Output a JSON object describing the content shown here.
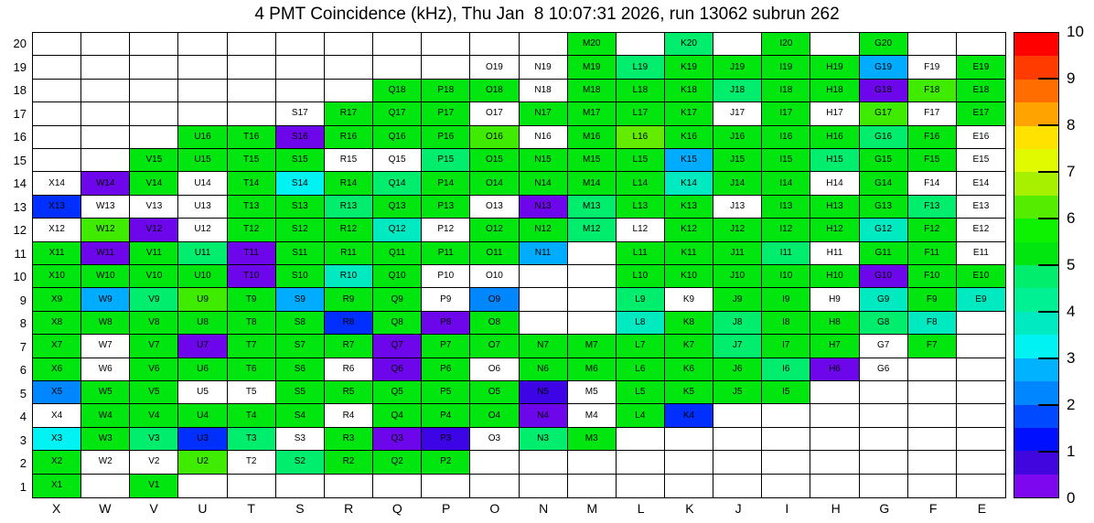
{
  "title": "4 PMT Coincidence (kHz), Thu Jan  8 10:07:31 2026, run 13062 subrun 262",
  "chart_data": {
    "type": "heatmap",
    "title": "4 PMT Coincidence (kHz), Thu Jan  8 10:07:31 2026, run 13062 subrun 262",
    "unit": "kHz",
    "x_labels": [
      "X",
      "W",
      "V",
      "U",
      "T",
      "S",
      "R",
      "Q",
      "P",
      "O",
      "N",
      "M",
      "L",
      "K",
      "J",
      "I",
      "H",
      "G",
      "F",
      "E"
    ],
    "y_labels": [
      "20",
      "19",
      "18",
      "17",
      "16",
      "15",
      "14",
      "13",
      "12",
      "11",
      "10",
      "9",
      "8",
      "7",
      "6",
      "5",
      "4",
      "3",
      "2",
      "1"
    ],
    "palette": {
      "g": "#00e60e",
      "yg": "#3fec00",
      "yg2": "#63ec00",
      "sg": "#00ed6d",
      "tq": "#00eac2",
      "cy": "#00f2f2",
      "lb": "#00acff",
      "mb": "#0087ff",
      "bl": "#002fff",
      "vb": "#3d04e6",
      "vi": "#6d06ea",
      "w": "#ffffff"
    },
    "palette_approx_value_kHz": {
      "g": 5.2,
      "yg": 6.2,
      "yg2": 6.3,
      "sg": 4.7,
      "tq": 3.7,
      "cy": 3.2,
      "lb": 2.7,
      "mb": 2.2,
      "bl": 1.4,
      "vb": 0.8,
      "vi": 0.3,
      "w": null
    },
    "colorbar": {
      "min": 0,
      "max": 10,
      "ticks": [
        "10",
        "9",
        "8",
        "7",
        "6",
        "5",
        "4",
        "3",
        "2",
        "1",
        "0"
      ],
      "bands": [
        "#ff0000",
        "#ff3b00",
        "#ff6c00",
        "#ffa300",
        "#ffe200",
        "#e2fa00",
        "#a6f000",
        "#55ec00",
        "#0cf200",
        "#00e60e",
        "#00ed6d",
        "#00f094",
        "#00eac2",
        "#00f2f2",
        "#00b2ff",
        "#0087ff",
        "#0049ff",
        "#0010ff",
        "#4105dd",
        "#7d08f0"
      ]
    },
    "rows": [
      [
        null,
        null,
        null,
        null,
        null,
        null,
        null,
        null,
        null,
        null,
        null,
        [
          "M20",
          "g"
        ],
        null,
        [
          "K20",
          "sg"
        ],
        null,
        [
          "I20",
          "g"
        ],
        null,
        [
          "G20",
          "g"
        ],
        null,
        null
      ],
      [
        null,
        null,
        null,
        null,
        null,
        null,
        null,
        null,
        null,
        [
          "O19",
          "w"
        ],
        [
          "N19",
          "w"
        ],
        [
          "M19",
          "g"
        ],
        [
          "L19",
          "sg"
        ],
        [
          "K19",
          "g"
        ],
        [
          "J19",
          "g"
        ],
        [
          "I19",
          "g"
        ],
        [
          "H19",
          "g"
        ],
        [
          "G19",
          "lb"
        ],
        [
          "F19",
          "w"
        ],
        [
          "E19",
          "g"
        ]
      ],
      [
        null,
        null,
        null,
        null,
        null,
        null,
        null,
        [
          "Q18",
          "g"
        ],
        [
          "P18",
          "g"
        ],
        [
          "O18",
          "g"
        ],
        [
          "N18",
          "w"
        ],
        [
          "M18",
          "g"
        ],
        [
          "L18",
          "g"
        ],
        [
          "K18",
          "g"
        ],
        [
          "J18",
          "sg"
        ],
        [
          "I18",
          "g"
        ],
        [
          "H18",
          "g"
        ],
        [
          "G18",
          "vi"
        ],
        [
          "F18",
          "yg"
        ],
        [
          "E18",
          "g"
        ]
      ],
      [
        null,
        null,
        null,
        null,
        null,
        [
          "S17",
          "w"
        ],
        [
          "R17",
          "g"
        ],
        [
          "Q17",
          "g"
        ],
        [
          "P17",
          "g"
        ],
        [
          "O17",
          "w"
        ],
        [
          "N17",
          "g"
        ],
        [
          "M17",
          "g"
        ],
        [
          "L17",
          "g"
        ],
        [
          "K17",
          "g"
        ],
        [
          "J17",
          "w"
        ],
        [
          "I17",
          "g"
        ],
        [
          "H17",
          "w"
        ],
        [
          "G17",
          "yg"
        ],
        [
          "F17",
          "w"
        ],
        [
          "E17",
          "g"
        ]
      ],
      [
        null,
        null,
        null,
        [
          "U16",
          "g"
        ],
        [
          "T16",
          "g"
        ],
        [
          "S16",
          "vi"
        ],
        [
          "R16",
          "g"
        ],
        [
          "Q16",
          "g"
        ],
        [
          "P16",
          "g"
        ],
        [
          "O16",
          "yg"
        ],
        [
          "N16",
          "w"
        ],
        [
          "M16",
          "g"
        ],
        [
          "L16",
          "yg2"
        ],
        [
          "K16",
          "g"
        ],
        [
          "J16",
          "g"
        ],
        [
          "I16",
          "g"
        ],
        [
          "H16",
          "g"
        ],
        [
          "G16",
          "sg"
        ],
        [
          "F16",
          "g"
        ],
        [
          "E16",
          "w"
        ]
      ],
      [
        null,
        null,
        [
          "V15",
          "g"
        ],
        [
          "U15",
          "g"
        ],
        [
          "T15",
          "g"
        ],
        [
          "S15",
          "g"
        ],
        [
          "R15",
          "w"
        ],
        [
          "Q15",
          "w"
        ],
        [
          "P15",
          "sg"
        ],
        [
          "O15",
          "g"
        ],
        [
          "N15",
          "g"
        ],
        [
          "M15",
          "g"
        ],
        [
          "L15",
          "g"
        ],
        [
          "K15",
          "lb"
        ],
        [
          "J15",
          "g"
        ],
        [
          "I15",
          "g"
        ],
        [
          "H15",
          "sg"
        ],
        [
          "G15",
          "g"
        ],
        [
          "F15",
          "g"
        ],
        [
          "E15",
          "w"
        ]
      ],
      [
        [
          "X14",
          "w"
        ],
        [
          "W14",
          "vi"
        ],
        [
          "V14",
          "g"
        ],
        [
          "U14",
          "w"
        ],
        [
          "T14",
          "g"
        ],
        [
          "S14",
          "cy"
        ],
        [
          "R14",
          "g"
        ],
        [
          "Q14",
          "sg"
        ],
        [
          "P14",
          "g"
        ],
        [
          "O14",
          "g"
        ],
        [
          "N14",
          "g"
        ],
        [
          "M14",
          "g"
        ],
        [
          "L14",
          "g"
        ],
        [
          "K14",
          "tq"
        ],
        [
          "J14",
          "g"
        ],
        [
          "I14",
          "g"
        ],
        [
          "H14",
          "w"
        ],
        [
          "G14",
          "g"
        ],
        [
          "F14",
          "w"
        ],
        [
          "E14",
          "w"
        ]
      ],
      [
        [
          "X13",
          "bl"
        ],
        [
          "W13",
          "w"
        ],
        [
          "V13",
          "w"
        ],
        [
          "U13",
          "w"
        ],
        [
          "T13",
          "g"
        ],
        [
          "S13",
          "g"
        ],
        [
          "R13",
          "sg"
        ],
        [
          "Q13",
          "g"
        ],
        [
          "P13",
          "g"
        ],
        [
          "O13",
          "w"
        ],
        [
          "N13",
          "vi"
        ],
        [
          "M13",
          "sg"
        ],
        [
          "L13",
          "g"
        ],
        [
          "K13",
          "g"
        ],
        [
          "J13",
          "w"
        ],
        [
          "I13",
          "g"
        ],
        [
          "H13",
          "g"
        ],
        [
          "G13",
          "g"
        ],
        [
          "F13",
          "sg"
        ],
        [
          "E13",
          "w"
        ]
      ],
      [
        [
          "X12",
          "w"
        ],
        [
          "W12",
          "yg"
        ],
        [
          "V12",
          "vi"
        ],
        [
          "U12",
          "w"
        ],
        [
          "T12",
          "g"
        ],
        [
          "S12",
          "g"
        ],
        [
          "R12",
          "g"
        ],
        [
          "Q12",
          "tq"
        ],
        [
          "P12",
          "w"
        ],
        [
          "O12",
          "g"
        ],
        [
          "N12",
          "g"
        ],
        [
          "M12",
          "sg"
        ],
        [
          "L12",
          "w"
        ],
        [
          "K12",
          "g"
        ],
        [
          "J12",
          "g"
        ],
        [
          "I12",
          "g"
        ],
        [
          "H12",
          "g"
        ],
        [
          "G12",
          "tq"
        ],
        [
          "F12",
          "g"
        ],
        [
          "E12",
          "w"
        ]
      ],
      [
        [
          "X11",
          "g"
        ],
        [
          "W11",
          "vi"
        ],
        [
          "V11",
          "g"
        ],
        [
          "U11",
          "sg"
        ],
        [
          "T11",
          "vi"
        ],
        [
          "S11",
          "g"
        ],
        [
          "R11",
          "g"
        ],
        [
          "Q11",
          "g"
        ],
        [
          "P11",
          "g"
        ],
        [
          "O11",
          "g"
        ],
        [
          "N11",
          "lb"
        ],
        null,
        [
          "L11",
          "g"
        ],
        [
          "K11",
          "g"
        ],
        [
          "J11",
          "g"
        ],
        [
          "I11",
          "sg"
        ],
        [
          "H11",
          "w"
        ],
        [
          "G11",
          "g"
        ],
        [
          "F11",
          "g"
        ],
        [
          "E11",
          "w"
        ]
      ],
      [
        [
          "X10",
          "g"
        ],
        [
          "W10",
          "g"
        ],
        [
          "V10",
          "g"
        ],
        [
          "U10",
          "g"
        ],
        [
          "T10",
          "vi"
        ],
        [
          "S10",
          "g"
        ],
        [
          "R10",
          "tq"
        ],
        [
          "Q10",
          "g"
        ],
        [
          "P10",
          "w"
        ],
        [
          "O10",
          "w"
        ],
        null,
        null,
        [
          "L10",
          "g"
        ],
        [
          "K10",
          "g"
        ],
        [
          "J10",
          "g"
        ],
        [
          "I10",
          "g"
        ],
        [
          "H10",
          "g"
        ],
        [
          "G10",
          "vi"
        ],
        [
          "F10",
          "g"
        ],
        [
          "E10",
          "g"
        ]
      ],
      [
        [
          "X9",
          "g"
        ],
        [
          "W9",
          "lb"
        ],
        [
          "V9",
          "sg"
        ],
        [
          "U9",
          "yg"
        ],
        [
          "T9",
          "g"
        ],
        [
          "S9",
          "lb"
        ],
        [
          "R9",
          "g"
        ],
        [
          "Q9",
          "g"
        ],
        [
          "P9",
          "w"
        ],
        [
          "O9",
          "mb"
        ],
        null,
        null,
        [
          "L9",
          "sg"
        ],
        [
          "K9",
          "w"
        ],
        [
          "J9",
          "g"
        ],
        [
          "I9",
          "g"
        ],
        [
          "H9",
          "w"
        ],
        [
          "G9",
          "tq"
        ],
        [
          "F9",
          "g"
        ],
        [
          "E9",
          "tq"
        ]
      ],
      [
        [
          "X8",
          "g"
        ],
        [
          "W8",
          "g"
        ],
        [
          "V8",
          "g"
        ],
        [
          "U8",
          "g"
        ],
        [
          "T8",
          "g"
        ],
        [
          "S8",
          "g"
        ],
        [
          "R8",
          "bl"
        ],
        [
          "Q8",
          "g"
        ],
        [
          "P8",
          "vi"
        ],
        [
          "O8",
          "g"
        ],
        null,
        null,
        [
          "L8",
          "tq"
        ],
        [
          "K8",
          "g"
        ],
        [
          "J8",
          "sg"
        ],
        [
          "I8",
          "g"
        ],
        [
          "H8",
          "g"
        ],
        [
          "G8",
          "sg"
        ],
        [
          "F8",
          "tq"
        ],
        null
      ],
      [
        [
          "X7",
          "g"
        ],
        [
          "W7",
          "w"
        ],
        [
          "V7",
          "g"
        ],
        [
          "U7",
          "vi"
        ],
        [
          "T7",
          "g"
        ],
        [
          "S7",
          "g"
        ],
        [
          "R7",
          "g"
        ],
        [
          "Q7",
          "vi"
        ],
        [
          "P7",
          "g"
        ],
        [
          "O7",
          "g"
        ],
        [
          "N7",
          "g"
        ],
        [
          "M7",
          "g"
        ],
        [
          "L7",
          "g"
        ],
        [
          "K7",
          "g"
        ],
        [
          "J7",
          "sg"
        ],
        [
          "I7",
          "g"
        ],
        [
          "H7",
          "g"
        ],
        [
          "G7",
          "w"
        ],
        [
          "F7",
          "g"
        ],
        null
      ],
      [
        [
          "X6",
          "g"
        ],
        [
          "W6",
          "w"
        ],
        [
          "V6",
          "g"
        ],
        [
          "U6",
          "g"
        ],
        [
          "T6",
          "g"
        ],
        [
          "S6",
          "g"
        ],
        [
          "R6",
          "w"
        ],
        [
          "Q6",
          "vi"
        ],
        [
          "P6",
          "g"
        ],
        [
          "O6",
          "w"
        ],
        [
          "N6",
          "g"
        ],
        [
          "M6",
          "g"
        ],
        [
          "L6",
          "g"
        ],
        [
          "K6",
          "g"
        ],
        [
          "J6",
          "g"
        ],
        [
          "I6",
          "sg"
        ],
        [
          "H6",
          "vi"
        ],
        [
          "G6",
          "w"
        ],
        null,
        null
      ],
      [
        [
          "X5",
          "mb"
        ],
        [
          "W5",
          "g"
        ],
        [
          "V5",
          "g"
        ],
        [
          "U5",
          "w"
        ],
        [
          "T5",
          "w"
        ],
        [
          "S5",
          "g"
        ],
        [
          "R5",
          "g"
        ],
        [
          "Q5",
          "g"
        ],
        [
          "P5",
          "g"
        ],
        [
          "O5",
          "g"
        ],
        [
          "N5",
          "vb"
        ],
        [
          "M5",
          "w"
        ],
        [
          "L5",
          "g"
        ],
        [
          "K5",
          "g"
        ],
        [
          "J5",
          "g"
        ],
        [
          "I5",
          "g"
        ],
        null,
        null,
        null,
        null
      ],
      [
        [
          "X4",
          "w"
        ],
        [
          "W4",
          "g"
        ],
        [
          "V4",
          "g"
        ],
        [
          "U4",
          "g"
        ],
        [
          "T4",
          "g"
        ],
        [
          "S4",
          "g"
        ],
        [
          "R4",
          "w"
        ],
        [
          "Q4",
          "g"
        ],
        [
          "P4",
          "g"
        ],
        [
          "O4",
          "g"
        ],
        [
          "N4",
          "vi"
        ],
        [
          "M4",
          "w"
        ],
        [
          "L4",
          "g"
        ],
        [
          "K4",
          "bl"
        ],
        null,
        null,
        null,
        null,
        null,
        null
      ],
      [
        [
          "X3",
          "cy"
        ],
        [
          "W3",
          "g"
        ],
        [
          "V3",
          "sg"
        ],
        [
          "U3",
          "bl"
        ],
        [
          "T3",
          "sg"
        ],
        [
          "S3",
          "w"
        ],
        [
          "R3",
          "g"
        ],
        [
          "Q3",
          "vi"
        ],
        [
          "P3",
          "vb"
        ],
        [
          "O3",
          "w"
        ],
        [
          "N3",
          "sg"
        ],
        [
          "M3",
          "g"
        ],
        null,
        null,
        null,
        null,
        null,
        null,
        null,
        null
      ],
      [
        [
          "X2",
          "g"
        ],
        [
          "W2",
          "w"
        ],
        [
          "V2",
          "w"
        ],
        [
          "U2",
          "yg"
        ],
        [
          "T2",
          "w"
        ],
        [
          "S2",
          "sg"
        ],
        [
          "R2",
          "g"
        ],
        [
          "Q2",
          "g"
        ],
        [
          "P2",
          "g"
        ],
        null,
        null,
        null,
        null,
        null,
        null,
        null,
        null,
        null,
        null,
        null
      ],
      [
        [
          "X1",
          "g"
        ],
        null,
        [
          "V1",
          "g"
        ],
        null,
        null,
        null,
        null,
        null,
        null,
        null,
        null,
        null,
        null,
        null,
        null,
        null,
        null,
        null,
        null,
        null
      ]
    ]
  }
}
